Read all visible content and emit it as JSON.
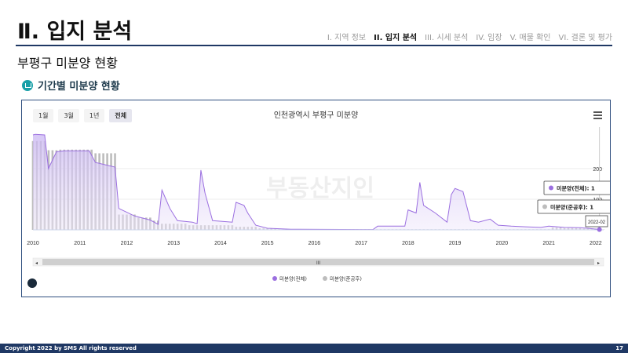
{
  "header": {
    "title": "Ⅱ. 입지 분석",
    "nav": [
      "I. 지역 정보",
      "II. 입지 분석",
      "III. 시세 분석",
      "IV. 임장",
      "V. 매물 확인",
      "VI. 결론 및 평가"
    ],
    "active_nav": 1
  },
  "subtitle": "부평구 미분양 현황",
  "section": {
    "title": "기간별 미분양 현황",
    "icon": "home-icon"
  },
  "range_buttons": [
    "1월",
    "3월",
    "1년",
    "전체"
  ],
  "selected_range": "전체",
  "chart_data": {
    "type": "area",
    "title": "인천광역시 부평구 미분양",
    "x_ticks": [
      "2010",
      "2011",
      "2012",
      "2013",
      "2014",
      "2015",
      "2016",
      "2017",
      "2018",
      "2019",
      "2020",
      "2021",
      "2022"
    ],
    "y_ticks": [
      100,
      200
    ],
    "ylim": [
      0,
      310
    ],
    "xlim": [
      2010,
      2022.17
    ],
    "series": [
      {
        "name": "미분양(전체)",
        "color": "#9b6fe0",
        "points": [
          [
            2010,
            310
          ],
          [
            2010.05,
            312
          ],
          [
            2010.25,
            310
          ],
          [
            2010.33,
            200
          ],
          [
            2010.5,
            255
          ],
          [
            2010.67,
            258
          ],
          [
            2011.2,
            258
          ],
          [
            2011.33,
            220
          ],
          [
            2011.75,
            205
          ],
          [
            2011.83,
            70
          ],
          [
            2012.17,
            45
          ],
          [
            2012.5,
            32
          ],
          [
            2012.67,
            18
          ],
          [
            2012.75,
            130
          ],
          [
            2012.92,
            70
          ],
          [
            2013.08,
            30
          ],
          [
            2013.4,
            25
          ],
          [
            2013.5,
            20
          ],
          [
            2013.58,
            195
          ],
          [
            2013.67,
            120
          ],
          [
            2013.83,
            30
          ],
          [
            2014.25,
            25
          ],
          [
            2014.33,
            90
          ],
          [
            2014.5,
            80
          ],
          [
            2014.58,
            55
          ],
          [
            2014.75,
            15
          ],
          [
            2015,
            5
          ],
          [
            2015.5,
            2
          ],
          [
            2017,
            1
          ],
          [
            2017.25,
            1
          ],
          [
            2017.35,
            12
          ],
          [
            2017.93,
            12
          ],
          [
            2018.0,
            65
          ],
          [
            2018.17,
            55
          ],
          [
            2018.25,
            155
          ],
          [
            2018.33,
            80
          ],
          [
            2018.58,
            55
          ],
          [
            2018.83,
            25
          ],
          [
            2018.92,
            115
          ],
          [
            2019.0,
            135
          ],
          [
            2019.17,
            125
          ],
          [
            2019.33,
            30
          ],
          [
            2019.5,
            25
          ],
          [
            2019.75,
            35
          ],
          [
            2019.92,
            15
          ],
          [
            2020.2,
            12
          ],
          [
            2020.5,
            10
          ],
          [
            2020.83,
            8
          ],
          [
            2021.0,
            12
          ],
          [
            2021.33,
            8
          ],
          [
            2021.67,
            7
          ],
          [
            2021.83,
            5
          ],
          [
            2022.08,
            1
          ]
        ]
      },
      {
        "name": "미분양(준공후)",
        "color": "#bdbdbd",
        "bars": [
          [
            2010,
            290
          ],
          [
            2010.25,
            290
          ],
          [
            2010.33,
            260
          ],
          [
            2010.5,
            262
          ],
          [
            2011.2,
            262
          ],
          [
            2011.33,
            250
          ],
          [
            2011.75,
            200
          ],
          [
            2011.83,
            50
          ],
          [
            2012.17,
            40
          ],
          [
            2012.5,
            30
          ],
          [
            2012.67,
            20
          ],
          [
            2013.0,
            20
          ],
          [
            2013.33,
            15
          ],
          [
            2013.75,
            15
          ],
          [
            2014.25,
            10
          ],
          [
            2014.75,
            5
          ],
          [
            2015.17,
            2
          ],
          [
            2021.0,
            8
          ],
          [
            2021.33,
            6
          ],
          [
            2021.67,
            4
          ],
          [
            2022.08,
            1
          ]
        ]
      }
    ],
    "tooltips": [
      {
        "label": "미분양(전체): 1",
        "series": 0
      },
      {
        "label": "미분양(준공후): 1",
        "series": 1
      }
    ],
    "tooltip_x_label": "2022-02",
    "watermark": "부동산지인",
    "scrollbar_label": "III"
  },
  "footer": {
    "left": "Copyright 2022 by SMS All rights reserved",
    "page": "17"
  }
}
